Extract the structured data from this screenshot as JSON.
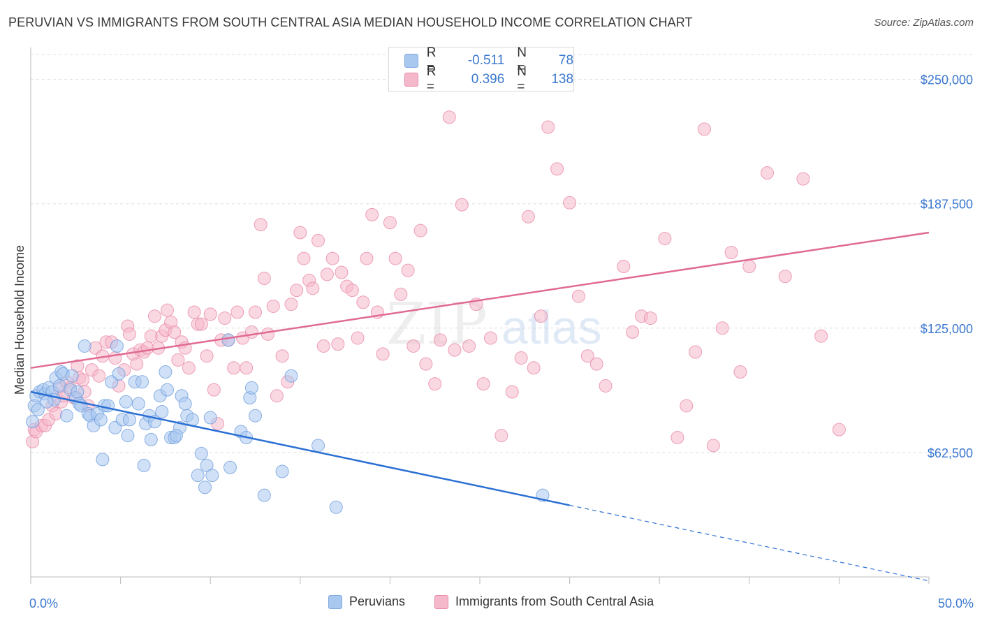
{
  "title": "PERUVIAN VS IMMIGRANTS FROM SOUTH CENTRAL ASIA MEDIAN HOUSEHOLD INCOME CORRELATION CHART",
  "source": "Source: ZipAtlas.com",
  "watermark": {
    "zip": "ZIP",
    "atlas": "atlas"
  },
  "legend": {
    "r_label": "R =",
    "n_label": "N =",
    "peruvians": {
      "r": "-0.511",
      "n": "78"
    },
    "immigrants": {
      "r": "0.396",
      "n": "138"
    }
  },
  "colors": {
    "blue_fill": "#a9c8f0",
    "blue_line": "#2a6fd4",
    "pink_fill": "#f5b8cb",
    "pink_line": "#e06a93",
    "tick_text": "#3b78d0",
    "grid": "#dddddd"
  },
  "chart_data": {
    "type": "scatter",
    "xlabel": "",
    "ylabel": "Median Household Income",
    "x_ticks": [
      "0.0%",
      "50.0%"
    ],
    "y_ticks": [
      "$62,500",
      "$125,000",
      "$187,500",
      "$250,000"
    ],
    "xlim": [
      0,
      50
    ],
    "ylim": [
      0,
      262500
    ],
    "grid": true,
    "series": [
      {
        "name": "Peruvians",
        "color": "#a9c8f0",
        "trend": {
          "x0": 0,
          "y0": 93000,
          "x1": 30,
          "y1": 36000,
          "dashed_to": [
            50,
            -2000
          ]
        },
        "points": [
          [
            0.1,
            78000
          ],
          [
            0.2,
            86000
          ],
          [
            0.3,
            91000
          ],
          [
            0.5,
            93000
          ],
          [
            0.7,
            94000
          ],
          [
            0.8,
            92000
          ],
          [
            1.0,
            95000
          ],
          [
            1.2,
            93000
          ],
          [
            1.3,
            89000
          ],
          [
            1.4,
            100000
          ],
          [
            1.6,
            96000
          ],
          [
            1.7,
            103000
          ],
          [
            1.8,
            102000
          ],
          [
            2.0,
            81000
          ],
          [
            2.2,
            94000
          ],
          [
            2.3,
            101000
          ],
          [
            2.5,
            90000
          ],
          [
            2.6,
            93000
          ],
          [
            2.7,
            87000
          ],
          [
            2.8,
            86000
          ],
          [
            3.0,
            116000
          ],
          [
            3.2,
            82000
          ],
          [
            3.3,
            81000
          ],
          [
            3.5,
            76000
          ],
          [
            3.7,
            82000
          ],
          [
            3.9,
            79000
          ],
          [
            4.0,
            59000
          ],
          [
            4.1,
            86000
          ],
          [
            4.3,
            86000
          ],
          [
            4.5,
            98000
          ],
          [
            4.7,
            75000
          ],
          [
            4.8,
            116000
          ],
          [
            4.9,
            102000
          ],
          [
            5.1,
            79000
          ],
          [
            5.3,
            88000
          ],
          [
            5.4,
            71000
          ],
          [
            5.5,
            79000
          ],
          [
            5.8,
            98000
          ],
          [
            6.0,
            87000
          ],
          [
            6.2,
            98000
          ],
          [
            6.3,
            56000
          ],
          [
            6.4,
            77000
          ],
          [
            6.6,
            81000
          ],
          [
            6.7,
            69000
          ],
          [
            6.9,
            78000
          ],
          [
            7.2,
            91000
          ],
          [
            7.3,
            83000
          ],
          [
            7.5,
            103000
          ],
          [
            7.6,
            94000
          ],
          [
            7.8,
            70000
          ],
          [
            8.0,
            70000
          ],
          [
            8.3,
            75000
          ],
          [
            8.1,
            71000
          ],
          [
            8.4,
            91000
          ],
          [
            8.6,
            87000
          ],
          [
            8.7,
            81000
          ],
          [
            9.0,
            79000
          ],
          [
            9.3,
            51000
          ],
          [
            9.5,
            62000
          ],
          [
            9.7,
            45000
          ],
          [
            9.8,
            56000
          ],
          [
            10.1,
            51000
          ],
          [
            10.0,
            80000
          ],
          [
            11.0,
            119000
          ],
          [
            11.1,
            55000
          ],
          [
            11.7,
            73000
          ],
          [
            12.0,
            70000
          ],
          [
            12.2,
            90000
          ],
          [
            12.3,
            95000
          ],
          [
            12.5,
            81000
          ],
          [
            13.0,
            41000
          ],
          [
            14.0,
            53000
          ],
          [
            14.5,
            101000
          ],
          [
            16.0,
            66000
          ],
          [
            17.0,
            35000
          ],
          [
            28.5,
            41000
          ],
          [
            0.4,
            84000
          ],
          [
            0.9,
            88000
          ]
        ]
      },
      {
        "name": "Immigrants from South Central Asia",
        "color": "#f5b8cb",
        "trend": {
          "x0": 0,
          "y0": 105000,
          "x1": 50,
          "y1": 173000
        },
        "points": [
          [
            0.1,
            68000
          ],
          [
            0.2,
            74000
          ],
          [
            0.3,
            73000
          ],
          [
            0.6,
            76000
          ],
          [
            0.8,
            76000
          ],
          [
            1.0,
            79000
          ],
          [
            1.2,
            86000
          ],
          [
            1.4,
            82000
          ],
          [
            1.6,
            95000
          ],
          [
            1.7,
            88000
          ],
          [
            1.8,
            91000
          ],
          [
            2.0,
            98000
          ],
          [
            2.2,
            95000
          ],
          [
            2.4,
            90000
          ],
          [
            2.6,
            106000
          ],
          [
            2.7,
            100000
          ],
          [
            2.9,
            99000
          ],
          [
            3.0,
            93000
          ],
          [
            3.2,
            86000
          ],
          [
            3.4,
            104000
          ],
          [
            3.6,
            115000
          ],
          [
            3.8,
            101000
          ],
          [
            4.0,
            111000
          ],
          [
            4.2,
            118000
          ],
          [
            4.5,
            118000
          ],
          [
            4.7,
            110000
          ],
          [
            4.9,
            96000
          ],
          [
            5.2,
            104000
          ],
          [
            5.4,
            126000
          ],
          [
            5.5,
            122000
          ],
          [
            5.7,
            112000
          ],
          [
            5.9,
            107000
          ],
          [
            6.1,
            114000
          ],
          [
            6.3,
            113000
          ],
          [
            6.5,
            115000
          ],
          [
            6.7,
            121000
          ],
          [
            6.9,
            131000
          ],
          [
            7.1,
            115000
          ],
          [
            7.3,
            121000
          ],
          [
            7.5,
            124000
          ],
          [
            7.6,
            134000
          ],
          [
            7.8,
            128000
          ],
          [
            8.0,
            123000
          ],
          [
            8.2,
            109000
          ],
          [
            8.4,
            118000
          ],
          [
            8.6,
            115000
          ],
          [
            8.8,
            105000
          ],
          [
            9.1,
            133000
          ],
          [
            9.3,
            127000
          ],
          [
            9.5,
            127000
          ],
          [
            9.8,
            111000
          ],
          [
            10.0,
            132000
          ],
          [
            10.2,
            94000
          ],
          [
            10.4,
            77000
          ],
          [
            10.6,
            119000
          ],
          [
            10.8,
            130000
          ],
          [
            11.0,
            119000
          ],
          [
            11.3,
            105000
          ],
          [
            11.5,
            133000
          ],
          [
            11.8,
            120000
          ],
          [
            12.0,
            105000
          ],
          [
            12.3,
            123000
          ],
          [
            12.5,
            133000
          ],
          [
            12.8,
            177000
          ],
          [
            13.0,
            150000
          ],
          [
            13.2,
            122000
          ],
          [
            13.5,
            136000
          ],
          [
            13.7,
            91000
          ],
          [
            14.0,
            111000
          ],
          [
            14.3,
            98000
          ],
          [
            14.5,
            137000
          ],
          [
            14.8,
            144000
          ],
          [
            15.0,
            173000
          ],
          [
            15.2,
            160000
          ],
          [
            15.5,
            149000
          ],
          [
            15.7,
            145000
          ],
          [
            16.0,
            169000
          ],
          [
            16.3,
            116000
          ],
          [
            16.5,
            152000
          ],
          [
            16.8,
            160000
          ],
          [
            17.1,
            117000
          ],
          [
            17.3,
            153000
          ],
          [
            17.6,
            146000
          ],
          [
            17.9,
            144000
          ],
          [
            18.2,
            120000
          ],
          [
            18.5,
            138000
          ],
          [
            18.7,
            160000
          ],
          [
            19.0,
            182000
          ],
          [
            19.3,
            133000
          ],
          [
            19.6,
            112000
          ],
          [
            20.0,
            178000
          ],
          [
            20.3,
            160000
          ],
          [
            20.6,
            142000
          ],
          [
            21.0,
            154000
          ],
          [
            21.3,
            116000
          ],
          [
            21.7,
            174000
          ],
          [
            22.0,
            107000
          ],
          [
            22.5,
            97000
          ],
          [
            22.8,
            119000
          ],
          [
            23.3,
            231000
          ],
          [
            23.6,
            114000
          ],
          [
            24.0,
            187000
          ],
          [
            24.4,
            116000
          ],
          [
            24.8,
            137000
          ],
          [
            25.2,
            97000
          ],
          [
            25.6,
            120000
          ],
          [
            26.2,
            71000
          ],
          [
            26.8,
            93000
          ],
          [
            27.3,
            110000
          ],
          [
            27.7,
            181000
          ],
          [
            28.0,
            105000
          ],
          [
            28.4,
            131000
          ],
          [
            28.8,
            226000
          ],
          [
            29.3,
            205000
          ],
          [
            30.0,
            188000
          ],
          [
            30.5,
            141000
          ],
          [
            31.0,
            111000
          ],
          [
            31.5,
            107000
          ],
          [
            32.0,
            96000
          ],
          [
            33.0,
            156000
          ],
          [
            33.5,
            123000
          ],
          [
            34.0,
            131000
          ],
          [
            34.5,
            130000
          ],
          [
            35.3,
            170000
          ],
          [
            36.0,
            70000
          ],
          [
            36.5,
            86000
          ],
          [
            37.0,
            113000
          ],
          [
            37.5,
            225000
          ],
          [
            38.0,
            66000
          ],
          [
            38.5,
            125000
          ],
          [
            39.0,
            163000
          ],
          [
            39.5,
            103000
          ],
          [
            40.0,
            156000
          ],
          [
            41.0,
            203000
          ],
          [
            42.0,
            151000
          ],
          [
            43.0,
            200000
          ],
          [
            44.0,
            121000
          ],
          [
            45.0,
            74000
          ]
        ]
      }
    ]
  }
}
